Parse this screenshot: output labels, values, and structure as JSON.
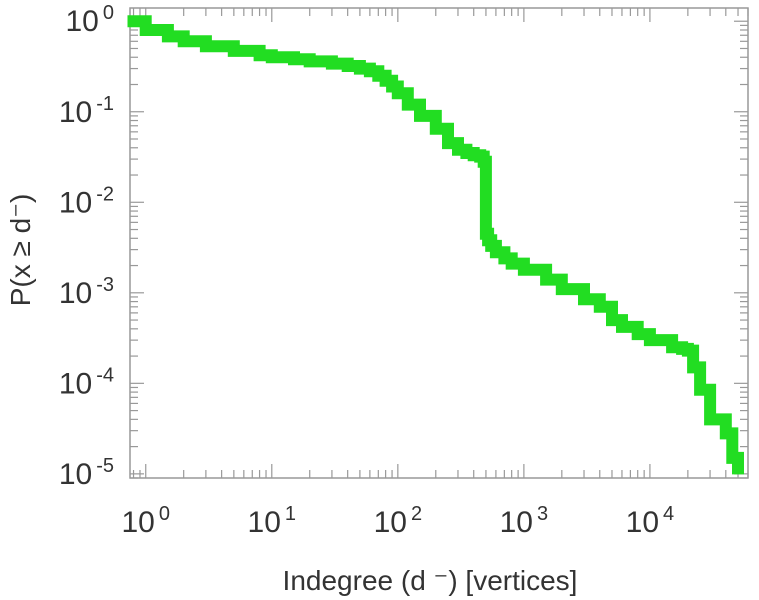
{
  "chart_data": {
    "type": "line",
    "style": "step-ccdf",
    "xscale": "log",
    "yscale": "log",
    "xlim": [
      0.75,
      60000
    ],
    "ylim": [
      9e-06,
      1.4
    ],
    "xlabel": "Indegree (d ⁻) [vertices]",
    "ylabel": "P(x ≥ d⁻)",
    "grid": false,
    "legend": "none",
    "line_color": "#22dd22",
    "x_ticks": [
      {
        "value": 1,
        "base": "10",
        "exp": "0"
      },
      {
        "value": 10,
        "base": "10",
        "exp": "1"
      },
      {
        "value": 100,
        "base": "10",
        "exp": "2"
      },
      {
        "value": 1000,
        "base": "10",
        "exp": "3"
      },
      {
        "value": 10000,
        "base": "10",
        "exp": "4"
      }
    ],
    "y_ticks": [
      {
        "value": 1,
        "base": "10",
        "exp": "0"
      },
      {
        "value": 0.1,
        "base": "10",
        "exp": "-1"
      },
      {
        "value": 0.01,
        "base": "10",
        "exp": "-2"
      },
      {
        "value": 0.001,
        "base": "10",
        "exp": "-3"
      },
      {
        "value": 0.0001,
        "base": "10",
        "exp": "-4"
      },
      {
        "value": 1e-05,
        "base": "10",
        "exp": "-5"
      }
    ],
    "series": [
      {
        "x": [
          0.8,
          1,
          1.5,
          2,
          3,
          5,
          8,
          10,
          15,
          20,
          30,
          40,
          50,
          60,
          70,
          80,
          90,
          100,
          120,
          150,
          200,
          250,
          300,
          350,
          400,
          450,
          480,
          500,
          520,
          550,
          600,
          700,
          800,
          1000,
          1500,
          2000,
          3000,
          4000,
          5000,
          6000,
          8000,
          10000,
          15000,
          18000,
          20000,
          22000,
          25000,
          30000,
          40000,
          45000,
          50000
        ],
        "y": [
          1.0,
          0.8,
          0.68,
          0.6,
          0.53,
          0.47,
          0.42,
          0.4,
          0.38,
          0.36,
          0.34,
          0.32,
          0.3,
          0.28,
          0.25,
          0.22,
          0.19,
          0.16,
          0.12,
          0.09,
          0.065,
          0.045,
          0.038,
          0.035,
          0.033,
          0.032,
          0.028,
          0.0045,
          0.0038,
          0.0033,
          0.0028,
          0.0024,
          0.0021,
          0.0018,
          0.0014,
          0.0011,
          0.00085,
          0.0007,
          0.0005,
          0.00042,
          0.00035,
          0.0003,
          0.00025,
          0.00024,
          0.00023,
          0.00015,
          8.5e-05,
          4e-05,
          2.8e-05,
          1.5e-05,
          1.15e-05
        ]
      }
    ]
  }
}
